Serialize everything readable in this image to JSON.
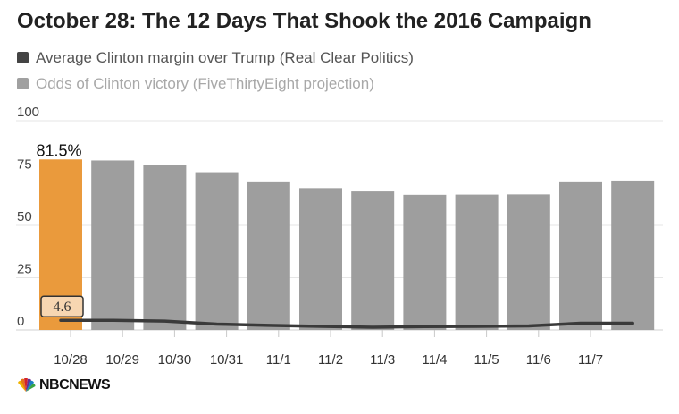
{
  "header": {
    "title": "October 28: The 12 Days That Shook the 2016 Campaign"
  },
  "legend": {
    "items": [
      {
        "label": "Average Clinton margin over Trump (Real Clear Politics)",
        "color": "#444444"
      },
      {
        "label": "Odds of Clinton victory (FiveThirtyEight projection)",
        "color": "#a0a0a0"
      }
    ]
  },
  "chart_data": {
    "type": "bar",
    "categories": [
      "10/28",
      "10/29",
      "10/30",
      "10/31",
      "11/1",
      "11/2",
      "11/3",
      "11/4",
      "11/5",
      "11/6",
      "11/7",
      ""
    ],
    "series": [
      {
        "name": "Odds of Clinton victory (FiveThirtyEight projection)",
        "type": "bar",
        "values": [
          81.5,
          81,
          78.8,
          75.4,
          71,
          67.8,
          66.2,
          64.6,
          64.7,
          64.8,
          71,
          71.4
        ]
      },
      {
        "name": "Average Clinton margin over Trump (Real Clear Politics)",
        "type": "line",
        "values": [
          4.6,
          4.6,
          4.2,
          2.8,
          2.2,
          1.7,
          1.3,
          1.6,
          1.7,
          1.9,
          3.2,
          3.2
        ]
      }
    ],
    "ylim": [
      0,
      100
    ],
    "yticks": [
      0,
      25,
      50,
      75,
      100
    ],
    "highlight_index": 0,
    "bar_label": "81.5%",
    "line_label": "4.6",
    "colors": {
      "bar": "#9e9e9e",
      "highlight": "#ea9a3c",
      "line": "#3a3a3a",
      "grid": "#e6e6e6"
    }
  },
  "footer": {
    "brand": "NBCNEWS"
  }
}
